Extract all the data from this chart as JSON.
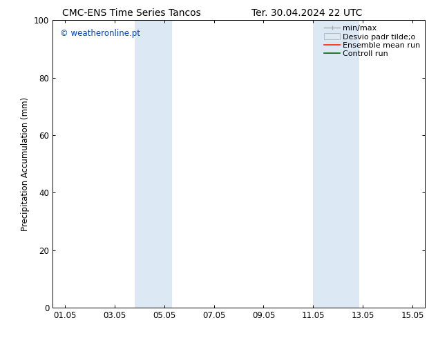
{
  "title_left": "CMC-ENS Time Series Tancos",
  "title_right": "Ter. 30.04.2024 22 UTC",
  "ylabel": "Precipitation Accumulation (mm)",
  "ylim": [
    0,
    100
  ],
  "yticks": [
    0,
    20,
    40,
    60,
    80,
    100
  ],
  "xlim": [
    0.5,
    15.5
  ],
  "xtick_labels": [
    "01.05",
    "03.05",
    "05.05",
    "07.05",
    "09.05",
    "11.05",
    "13.05",
    "15.05"
  ],
  "xtick_positions": [
    1,
    3,
    5,
    7,
    9,
    11,
    13,
    15
  ],
  "shaded_bands": [
    {
      "xstart": 3.8,
      "xend": 5.3
    },
    {
      "xstart": 11.0,
      "xend": 12.85
    }
  ],
  "shaded_color": "#dce9f5",
  "background_color": "#ffffff",
  "watermark_text": "© weatheronline.pt",
  "watermark_color": "#0044bb",
  "border_color": "#000000",
  "tick_color": "#000000",
  "font_size": 8.5,
  "title_font_size": 10,
  "legend_frameon": false,
  "legend_fontsize": 8
}
